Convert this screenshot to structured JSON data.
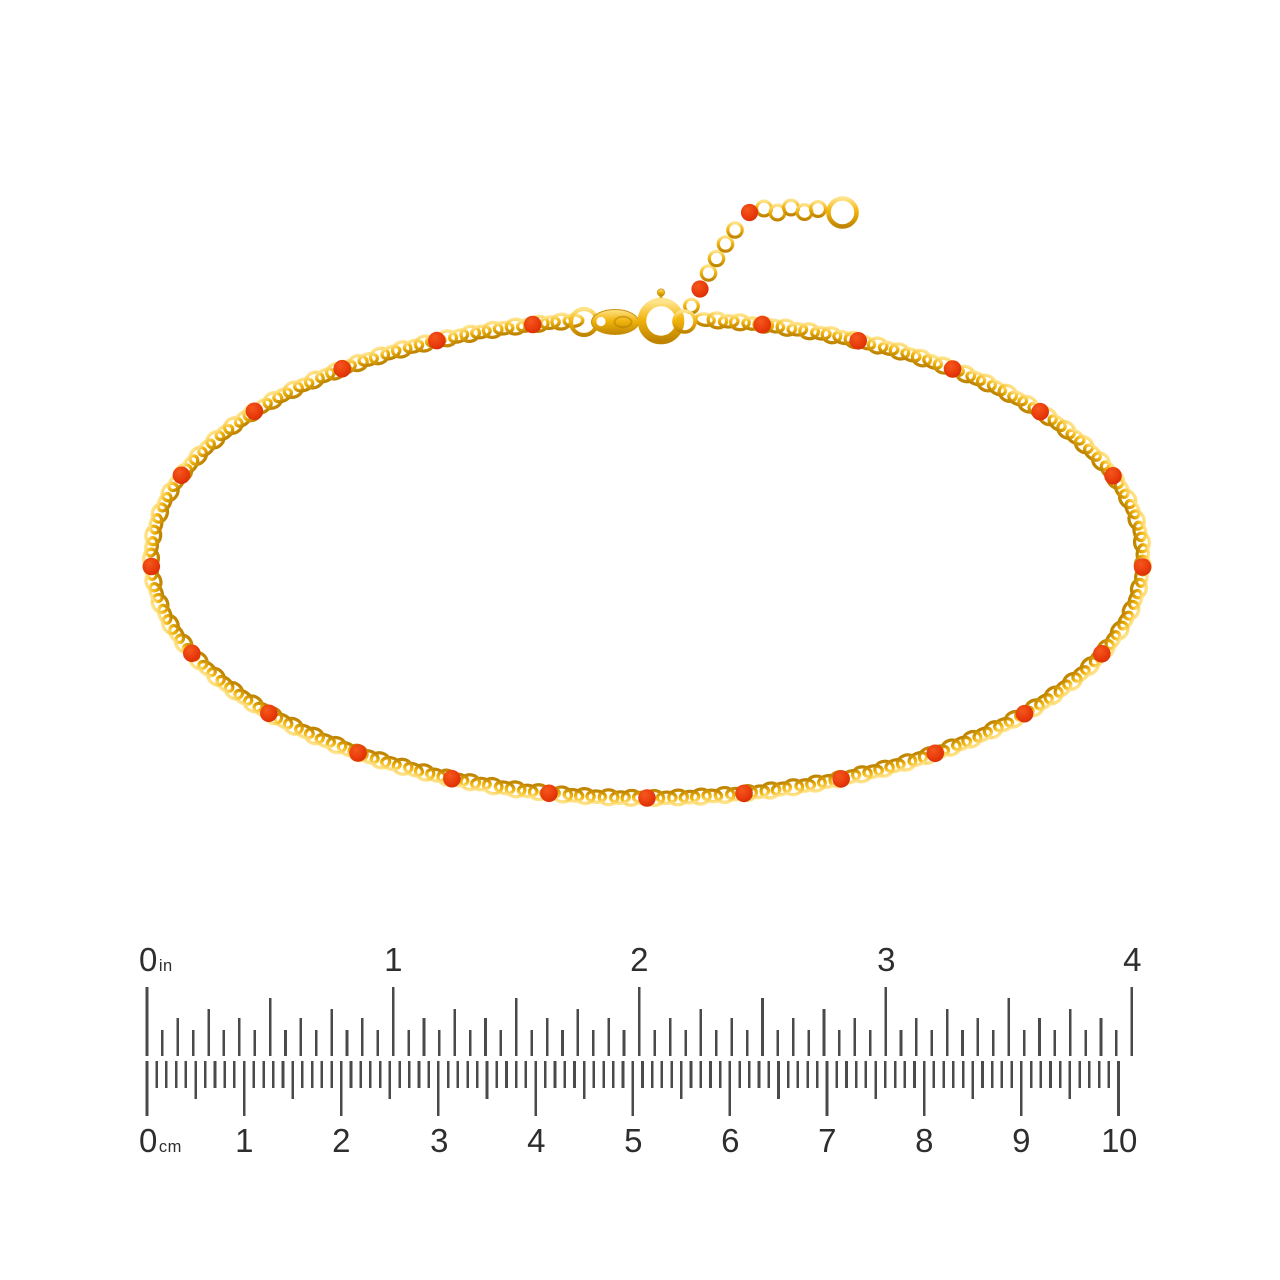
{
  "product_image": {
    "subject": "gold-chain-anklet-with-red-enamel-beads",
    "colors": {
      "gold_light": "#FFE38A",
      "gold_base": "#F2B50D",
      "gold_dark": "#C08500",
      "bead_light": "#F4581C",
      "bead_base": "#E93B0C",
      "bead_dark": "#D32C04"
    },
    "main_loop_bead_count": 23,
    "extension_bead_count": 2
  },
  "ruler": {
    "tick_color": "#4A4A4A",
    "label_color": "#2E2E2E",
    "inch_unit": "in",
    "inch_labels": [
      "0",
      "1",
      "2",
      "3",
      "4"
    ],
    "cm_unit": "cm",
    "cm_labels": [
      "0",
      "1",
      "2",
      "3",
      "4",
      "5",
      "6",
      "7",
      "8",
      "9",
      "10"
    ]
  }
}
